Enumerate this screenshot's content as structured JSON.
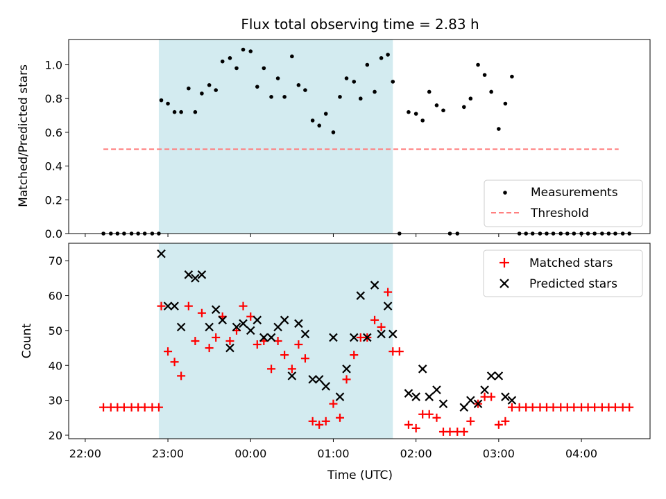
{
  "chart_data": [
    {
      "type": "scatter",
      "title": "Flux total observing time = 2.83 h",
      "ylabel": "Matched/Predicted stars",
      "xlabel": "",
      "ylim": [
        0,
        1.15
      ],
      "yticks": [
        0.0,
        0.2,
        0.4,
        0.6,
        0.8,
        1.0
      ],
      "ytick_labels": [
        "0.0",
        "0.2",
        "0.4",
        "0.6",
        "0.8",
        "1.0"
      ],
      "x_unit": "hours since 22:00 UTC",
      "shaded_span": [
        0.89,
        3.72
      ],
      "shade_color": "#d3ebf0",
      "legend_position": "lower-right",
      "series": [
        {
          "name": "Measurements",
          "color": "#000000",
          "marker": "dot",
          "x": [
            0.22,
            0.31,
            0.39,
            0.47,
            0.56,
            0.64,
            0.72,
            0.81,
            0.89,
            0.92,
            1.0,
            1.08,
            1.16,
            1.25,
            1.33,
            1.41,
            1.5,
            1.58,
            1.66,
            1.75,
            1.83,
            1.91,
            2.0,
            2.08,
            2.16,
            2.25,
            2.33,
            2.41,
            2.5,
            2.58,
            2.66,
            2.75,
            2.83,
            2.91,
            3.0,
            3.08,
            3.16,
            3.25,
            3.33,
            3.41,
            3.5,
            3.58,
            3.66,
            3.72,
            3.8,
            3.91,
            4.0,
            4.08,
            4.16,
            4.25,
            4.33,
            4.41,
            4.5,
            4.58,
            4.66,
            4.75,
            4.83,
            4.91,
            5.0,
            5.08,
            5.16,
            5.25,
            5.33,
            5.41,
            5.5,
            5.58,
            5.66,
            5.75,
            5.83,
            5.91,
            6.0,
            6.08,
            6.16,
            6.25,
            6.33,
            6.41,
            6.5,
            6.58
          ],
          "y": [
            0,
            0,
            0,
            0,
            0,
            0,
            0,
            0,
            0,
            0.79,
            0.77,
            0.72,
            0.72,
            0.86,
            0.72,
            0.83,
            0.88,
            0.85,
            1.02,
            1.04,
            0.98,
            1.09,
            1.08,
            0.87,
            0.98,
            0.81,
            0.92,
            0.81,
            1.05,
            0.88,
            0.85,
            0.67,
            0.64,
            0.71,
            0.6,
            0.81,
            0.92,
            0.9,
            0.8,
            1.0,
            0.84,
            1.04,
            1.06,
            0.9,
            0,
            0.72,
            0.71,
            0.67,
            0.84,
            0.76,
            0.73,
            0,
            0,
            0.75,
            0.8,
            1.0,
            0.94,
            0.84,
            0.62,
            0.77,
            0.93,
            0,
            0,
            0,
            0,
            0,
            0,
            0,
            0,
            0,
            0,
            0,
            0,
            0,
            0,
            0,
            0,
            0
          ]
        },
        {
          "name": "Threshold",
          "color": "#ff7f7f",
          "style": "dashed",
          "x": [
            0.22,
            6.45
          ],
          "y": [
            0.5,
            0.5
          ]
        }
      ]
    },
    {
      "type": "scatter",
      "title": "",
      "xlabel": "Time (UTC)",
      "ylabel": "Count",
      "ylim": [
        19,
        75
      ],
      "yticks": [
        20,
        30,
        40,
        50,
        60,
        70
      ],
      "ytick_labels": [
        "20",
        "30",
        "40",
        "50",
        "60",
        "70"
      ],
      "xlim": [
        -0.2,
        6.83
      ],
      "xticks": [
        0,
        1,
        2,
        3,
        4,
        5,
        6
      ],
      "xtick_labels": [
        "22:00",
        "23:00",
        "00:00",
        "01:00",
        "02:00",
        "03:00",
        "04:00"
      ],
      "x_unit": "hours since 22:00 UTC",
      "shaded_span": [
        0.89,
        3.72
      ],
      "shade_color": "#d3ebf0",
      "legend_position": "upper-right",
      "series": [
        {
          "name": "Matched stars",
          "color": "#ff0000",
          "marker": "plus",
          "x": [
            0.22,
            0.31,
            0.39,
            0.47,
            0.56,
            0.64,
            0.72,
            0.81,
            0.89,
            0.92,
            1.0,
            1.08,
            1.16,
            1.25,
            1.33,
            1.41,
            1.5,
            1.58,
            1.66,
            1.75,
            1.83,
            1.91,
            2.0,
            2.08,
            2.16,
            2.25,
            2.33,
            2.41,
            2.5,
            2.58,
            2.66,
            2.75,
            2.83,
            2.91,
            3.0,
            3.08,
            3.16,
            3.25,
            3.33,
            3.41,
            3.5,
            3.58,
            3.66,
            3.72,
            3.8,
            3.91,
            4.0,
            4.08,
            4.16,
            4.25,
            4.33,
            4.41,
            4.5,
            4.58,
            4.66,
            4.75,
            4.83,
            4.91,
            5.0,
            5.08,
            5.16,
            5.25,
            5.33,
            5.41,
            5.5,
            5.58,
            5.66,
            5.75,
            5.83,
            5.91,
            6.0,
            6.08,
            6.16,
            6.25,
            6.33,
            6.41,
            6.5,
            6.58
          ],
          "y": [
            28,
            28,
            28,
            28,
            28,
            28,
            28,
            28,
            28,
            57,
            44,
            41,
            37,
            57,
            47,
            55,
            45,
            48,
            54,
            47,
            50,
            57,
            54,
            46,
            47,
            39,
            47,
            43,
            39,
            46,
            42,
            24,
            23,
            24,
            29,
            25,
            36,
            43,
            48,
            48,
            53,
            51,
            61,
            44,
            44,
            23,
            22,
            26,
            26,
            25,
            21,
            21,
            21,
            21,
            24,
            29,
            31,
            31,
            23,
            24,
            28,
            28,
            28,
            28,
            28,
            28,
            28,
            28,
            28,
            28,
            28,
            28,
            28,
            28,
            28,
            28,
            28,
            28
          ]
        },
        {
          "name": "Predicted stars",
          "color": "#000000",
          "marker": "x",
          "x": [
            0.92,
            1.0,
            1.08,
            1.16,
            1.25,
            1.33,
            1.41,
            1.5,
            1.58,
            1.66,
            1.75,
            1.83,
            1.91,
            2.0,
            2.08,
            2.16,
            2.25,
            2.33,
            2.41,
            2.5,
            2.58,
            2.66,
            2.75,
            2.83,
            2.91,
            3.0,
            3.08,
            3.16,
            3.25,
            3.33,
            3.41,
            3.5,
            3.58,
            3.66,
            3.72,
            3.91,
            4.0,
            4.08,
            4.16,
            4.25,
            4.33,
            4.58,
            4.66,
            4.75,
            4.83,
            4.91,
            5.0,
            5.08,
            5.16
          ],
          "y": [
            72,
            57,
            57,
            51,
            66,
            65,
            66,
            51,
            56,
            53,
            45,
            51,
            52,
            50,
            53,
            48,
            48,
            51,
            53,
            37,
            52,
            49,
            36,
            36,
            34,
            48,
            31,
            39,
            48,
            60,
            48,
            63,
            49,
            57,
            49,
            32,
            31,
            39,
            31,
            33,
            29,
            28,
            30,
            29,
            33,
            37,
            37,
            31,
            30
          ]
        }
      ]
    }
  ]
}
